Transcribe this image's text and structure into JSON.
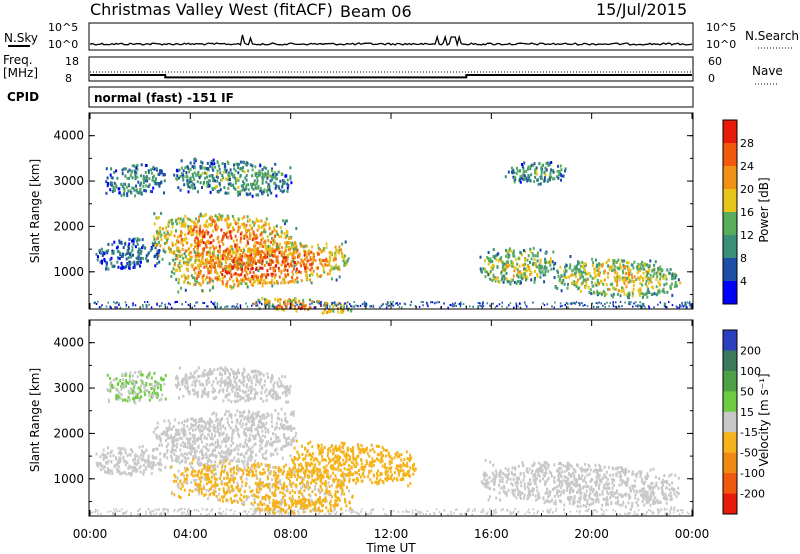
{
  "header": {
    "station": "Christmas Valley West (fitACF)",
    "beam": "Beam 06",
    "date": "15/Jul/2015"
  },
  "top_panels": {
    "nsky": {
      "label": "N.Sky",
      "ticks": [
        "10^5",
        "10^0"
      ]
    },
    "nsearch": {
      "label": "N.Search",
      "ticks": [
        "10^5",
        "10^0"
      ]
    },
    "freq": {
      "label_line1": "Freq.",
      "label_line2": "[MHz]",
      "ticks": [
        "18",
        "8"
      ],
      "values_mhz": [
        [
          0,
          3,
          10.5
        ],
        [
          3,
          15,
          9.5
        ],
        [
          15,
          24,
          10.5
        ]
      ]
    },
    "nave": {
      "label": "Nave",
      "ticks": [
        "60",
        "0"
      ]
    },
    "cpid": {
      "label": "CPID",
      "text": "normal (fast) -151 IF"
    }
  },
  "chart_data": [
    {
      "type": "heatmap",
      "xlabel": "",
      "ylabel": "Slant Range [km]",
      "xlim": [
        0,
        24
      ],
      "ylim": [
        180,
        4500
      ],
      "yticks": [
        "4000",
        "3000",
        "2000",
        "1000"
      ],
      "colorbar": {
        "label": "Power [dB]",
        "ticks": [
          "28",
          "24",
          "20",
          "16",
          "12",
          "8",
          "4"
        ],
        "colors": [
          "#0000ff",
          "#1d4fa6",
          "#3a8f79",
          "#56ad5b",
          "#e7c419",
          "#f19116",
          "#f25b0d",
          "#e81b0a"
        ]
      },
      "regions": [
        {
          "x": [
            0.6,
            3.0
          ],
          "y": [
            2650,
            3350
          ],
          "level": 0.35
        },
        {
          "x": [
            3.3,
            8.0
          ],
          "y": [
            2800,
            3550
          ],
          "level": 0.4
        },
        {
          "x": [
            0.2,
            2.8
          ],
          "y": [
            1050,
            1700
          ],
          "level": 0.25
        },
        {
          "x": [
            2.5,
            8.2
          ],
          "y": [
            1200,
            2400
          ],
          "level": 0.8
        },
        {
          "x": [
            3.2,
            10.3
          ],
          "y": [
            550,
            1500
          ],
          "level": 0.85
        },
        {
          "x": [
            6.5,
            10.5
          ],
          "y": [
            200,
            500
          ],
          "level": 0.8
        },
        {
          "x": [
            15.5,
            18.5
          ],
          "y": [
            700,
            1500
          ],
          "level": 0.55
        },
        {
          "x": [
            18.5,
            23.5
          ],
          "y": [
            550,
            1400
          ],
          "level": 0.6
        },
        {
          "x": [
            16.5,
            19.0
          ],
          "y": [
            2900,
            3400
          ],
          "level": 0.4
        }
      ]
    },
    {
      "type": "heatmap",
      "xlabel": "Time UT",
      "ylabel": "Slant Range [km]",
      "xlim": [
        0,
        24
      ],
      "ylim": [
        180,
        4500
      ],
      "xticks": [
        "00:00",
        "04:00",
        "08:00",
        "12:00",
        "16:00",
        "20:00",
        "00:00"
      ],
      "yticks": [
        "4000",
        "3000",
        "2000",
        "1000"
      ],
      "colorbar": {
        "label": "Velocity [m s⁻¹]",
        "ticks": [
          "200",
          "100",
          "50",
          "15",
          "-15",
          "-50",
          "-100",
          "-200"
        ],
        "colors": [
          "#2b3fbf",
          "#3b7a5a",
          "#4fa148",
          "#6ecb42",
          "#c8c8c8",
          "#f5b21a",
          "#f08a12",
          "#f05a0e",
          "#e81b0a"
        ]
      },
      "regions": [
        {
          "x": [
            0.6,
            3.0
          ],
          "y": [
            2650,
            3350
          ],
          "level": 15
        },
        {
          "x": [
            3.3,
            8.0
          ],
          "y": [
            2800,
            3550
          ],
          "level": 0
        },
        {
          "x": [
            2.5,
            8.2
          ],
          "y": [
            1200,
            2400
          ],
          "level": 0
        },
        {
          "x": [
            8.0,
            13.0
          ],
          "y": [
            1000,
            1900
          ],
          "level": -40
        },
        {
          "x": [
            0.2,
            2.8
          ],
          "y": [
            1050,
            1700
          ],
          "level": 0
        },
        {
          "x": [
            3.2,
            10.3
          ],
          "y": [
            550,
            1500
          ],
          "level": -20
        },
        {
          "x": [
            6.5,
            10.5
          ],
          "y": [
            200,
            500
          ],
          "level": -30
        },
        {
          "x": [
            15.5,
            23.5
          ],
          "y": [
            550,
            1500
          ],
          "level": 0
        }
      ]
    }
  ]
}
